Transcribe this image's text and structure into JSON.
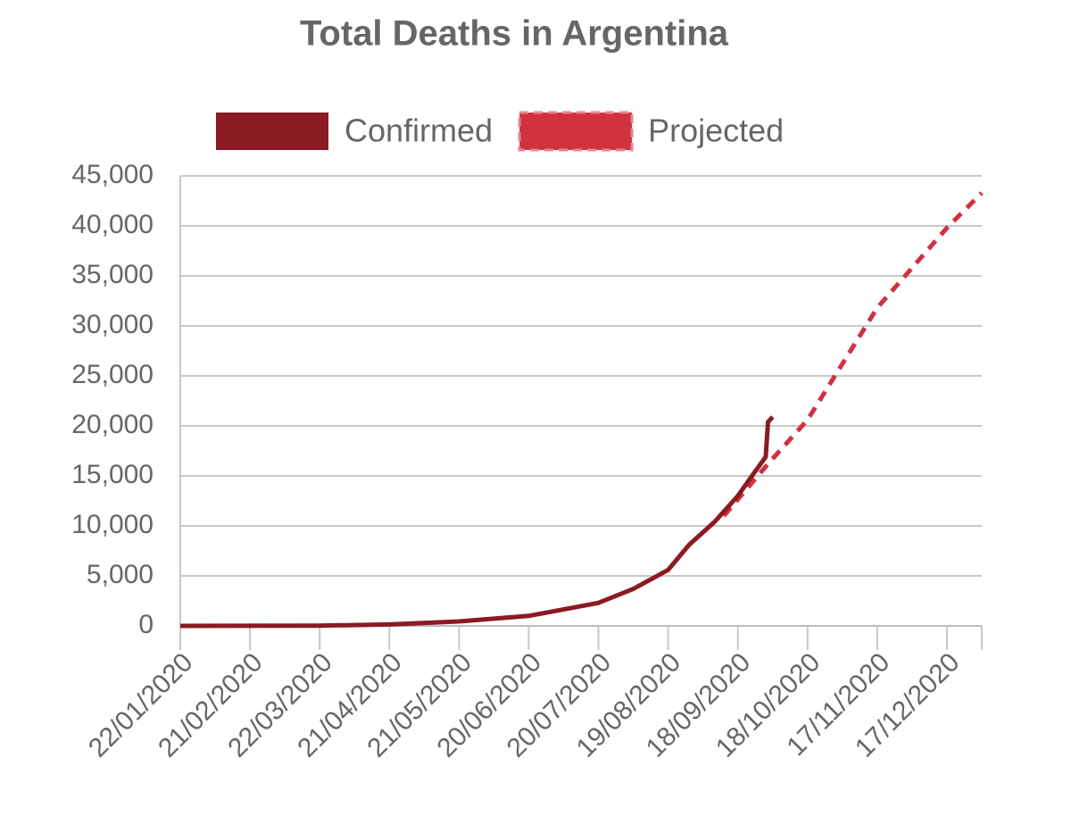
{
  "chart_data": {
    "type": "line",
    "title": "Total Deaths in Argentina",
    "series": [
      {
        "name": "Confirmed",
        "color": "#8b1a22",
        "dashed": false,
        "x": [
          "22/01/2020",
          "21/03/2020",
          "21/04/2020",
          "21/05/2020",
          "20/06/2020",
          "20/07/2020",
          "04/08/2020",
          "19/08/2020",
          "28/08/2020",
          "08/09/2020",
          "18/09/2020",
          "25/09/2020",
          "30/09/2020",
          "01/10/2020",
          "03/10/2020"
        ],
        "values": [
          0,
          20,
          150,
          450,
          1000,
          2300,
          3700,
          5600,
          8100,
          10400,
          13000,
          15300,
          16900,
          20400,
          20900
        ]
      },
      {
        "name": "Projected",
        "color": "#d0323f",
        "dashed": true,
        "x": [
          "12/09/2020",
          "01/10/2020",
          "18/10/2020",
          "17/11/2020",
          "17/12/2020",
          "01/01/2021"
        ],
        "values": [
          11000,
          16200,
          20600,
          31800,
          39800,
          43300
        ]
      }
    ],
    "xlim": [
      "22/01/2020",
      "01/01/2021"
    ],
    "xticks": [
      "22/01/2020",
      "21/02/2020",
      "22/03/2020",
      "21/04/2020",
      "21/05/2020",
      "20/06/2020",
      "20/07/2020",
      "19/08/2020",
      "18/09/2020",
      "18/10/2020",
      "17/11/2020",
      "17/12/2020"
    ],
    "ylim": [
      0,
      45000
    ],
    "yticks": [
      0,
      {
        "value": 5000,
        "label": "5,000"
      },
      {
        "value": 10000,
        "label": "10,000"
      },
      {
        "value": 15000,
        "label": "15,000"
      },
      {
        "value": 20000,
        "label": "20,000"
      },
      {
        "value": 25000,
        "label": "25,000"
      },
      {
        "value": 30000,
        "label": "30,000"
      },
      {
        "value": 35000,
        "label": "35,000"
      },
      {
        "value": 40000,
        "label": "40,000"
      },
      {
        "value": 45000,
        "label": "45,000"
      }
    ],
    "grid": true
  }
}
